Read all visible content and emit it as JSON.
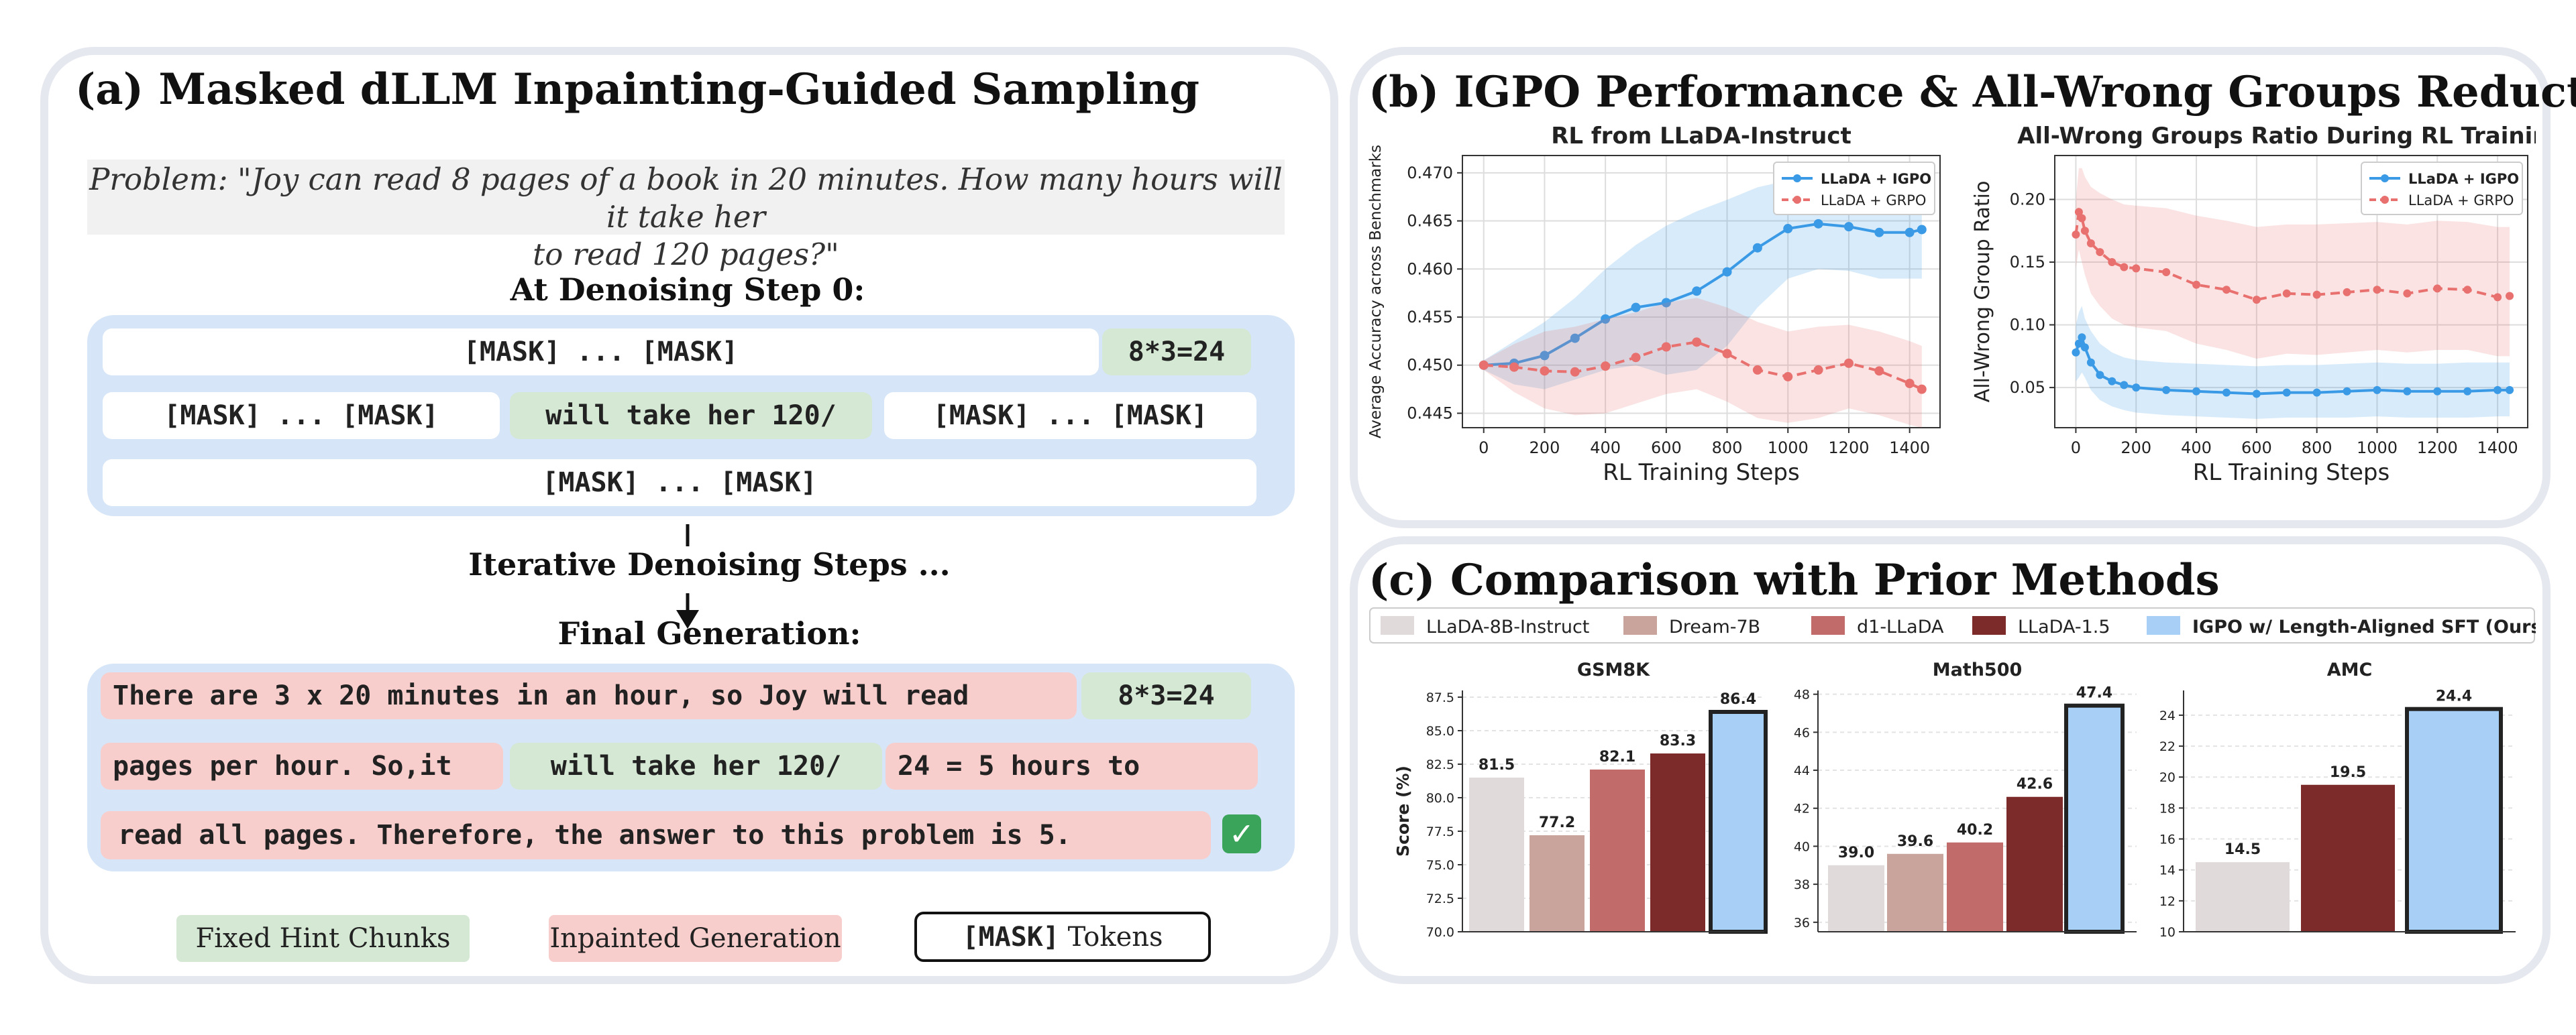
{
  "panel_a": {
    "title": "(a) Masked dLLM Inpainting-Guided Sampling",
    "problem_line1": "Problem: \"Joy can read 8 pages of a book in 20 minutes.  How many hours will it take her",
    "problem_line2": "to read 120 pages?\"",
    "step0_heading": "At Denoising Step 0:",
    "step0_rows": {
      "r1_mask": "[MASK] ... [MASK]",
      "r1_hint": "8*3=24",
      "r2_mask_a": "[MASK] ... [MASK]",
      "r2_hint": "will take her 120/",
      "r2_mask_b": "[MASK] ... [MASK]",
      "r3_mask": "[MASK] ... [MASK]"
    },
    "iterative_heading": "Iterative Denoising Steps ...",
    "final_heading": "Final Generation:",
    "final_rows": {
      "r1_inp": "There are 3 x 20 minutes in an hour, so Joy will read",
      "r1_hint": "8*3=24",
      "r2_inp_a": "pages per hour. So,it",
      "r2_hint": "will take her 120/",
      "r2_inp_b": "24 = 5 hours to",
      "r3_inp": "read all pages. Therefore, the answer to this problem is 5."
    },
    "legend": {
      "fixed": "Fixed Hint Chunks",
      "inpainted": "Inpainted Generation",
      "mask_mono": "[MASK]",
      "mask_text": " Tokens"
    }
  },
  "panel_b": {
    "title": "(b) IGPO Performance & All-Wrong Groups Reduction"
  },
  "panel_c": {
    "title": "(c) Comparison with Prior Methods",
    "legend": [
      "LLaDA-8B-Instruct",
      "Dream-7B",
      "d1-LLaDA",
      "LLaDA-1.5",
      "IGPO w/ Length-Aligned SFT (Ours)"
    ]
  },
  "colors": {
    "igpo_line": "#3a9ae6",
    "grpo_line": "#e8716f",
    "llada_instruct": "#e1dada",
    "dream": "#c9a49d",
    "d1": "#c16b6b",
    "llada15": "#7d2a2a",
    "ours": "#a8d0f7"
  },
  "chart_data": [
    {
      "type": "line",
      "title": "RL from LLaDA-Instruct",
      "xlabel": "RL Training Steps",
      "ylabel": "Average Accuracy across Benchmarks",
      "xlim": [
        -70,
        1500
      ],
      "ylim": [
        0.4435,
        0.4718
      ],
      "xticks": [
        "0",
        "200",
        "400",
        "600",
        "800",
        "1000",
        "1200",
        "1400"
      ],
      "yticks": [
        "0.445",
        "0.450",
        "0.455",
        "0.460",
        "0.465",
        "0.470"
      ],
      "grid": true,
      "legend_position": "top-right",
      "series": [
        {
          "name": "LLaDA + IGPO",
          "x": [
            0,
            100,
            200,
            300,
            400,
            500,
            600,
            700,
            800,
            900,
            1000,
            1100,
            1200,
            1300,
            1400,
            1440
          ],
          "y": [
            0.45,
            0.4502,
            0.451,
            0.4528,
            0.4548,
            0.456,
            0.4565,
            0.4577,
            0.4597,
            0.4622,
            0.4642,
            0.4647,
            0.4644,
            0.4638,
            0.4638,
            0.4641
          ],
          "band_upper": [
            0.4505,
            0.4525,
            0.4545,
            0.457,
            0.46,
            0.4625,
            0.4645,
            0.466,
            0.4672,
            0.4685,
            0.4692,
            0.4695,
            0.469,
            0.4688,
            0.4688,
            0.469
          ],
          "band_lower": [
            0.4495,
            0.448,
            0.4475,
            0.4485,
            0.4495,
            0.45,
            0.449,
            0.4495,
            0.452,
            0.456,
            0.459,
            0.46,
            0.4598,
            0.459,
            0.459,
            0.459
          ]
        },
        {
          "name": "LLaDA + GRPO",
          "x": [
            0,
            100,
            200,
            300,
            400,
            500,
            600,
            700,
            800,
            900,
            1000,
            1100,
            1200,
            1300,
            1400,
            1440
          ],
          "y": [
            0.45,
            0.4498,
            0.4494,
            0.4493,
            0.4499,
            0.4508,
            0.4519,
            0.4524,
            0.4512,
            0.4495,
            0.4488,
            0.4495,
            0.4502,
            0.4494,
            0.4481,
            0.4475
          ],
          "band_upper": [
            0.4505,
            0.4522,
            0.4535,
            0.454,
            0.4548,
            0.4555,
            0.4565,
            0.457,
            0.456,
            0.4545,
            0.4535,
            0.454,
            0.4542,
            0.4535,
            0.4525,
            0.452
          ],
          "band_lower": [
            0.4495,
            0.4472,
            0.4455,
            0.4448,
            0.445,
            0.446,
            0.447,
            0.4475,
            0.4462,
            0.4445,
            0.444,
            0.4445,
            0.4455,
            0.4448,
            0.4438,
            0.4435
          ]
        }
      ]
    },
    {
      "type": "line",
      "title": "All-Wrong Groups Ratio During RL Training",
      "xlabel": "RL Training Steps",
      "ylabel": "All-Wrong Group Ratio",
      "xlim": [
        -70,
        1500
      ],
      "ylim": [
        0.018,
        0.235
      ],
      "xticks": [
        "0",
        "200",
        "400",
        "600",
        "800",
        "1000",
        "1200",
        "1400"
      ],
      "yticks": [
        "0.05",
        "0.10",
        "0.15",
        "0.20"
      ],
      "grid": true,
      "legend_position": "top-right",
      "series": [
        {
          "name": "LLaDA + IGPO",
          "x": [
            0,
            10,
            20,
            30,
            50,
            80,
            120,
            160,
            200,
            300,
            400,
            500,
            600,
            700,
            800,
            900,
            1000,
            1100,
            1200,
            1300,
            1400,
            1440
          ],
          "y": [
            0.078,
            0.085,
            0.09,
            0.082,
            0.07,
            0.06,
            0.055,
            0.052,
            0.05,
            0.048,
            0.047,
            0.046,
            0.045,
            0.046,
            0.046,
            0.047,
            0.048,
            0.047,
            0.047,
            0.047,
            0.048,
            0.048
          ],
          "band_upper": [
            0.1,
            0.11,
            0.115,
            0.105,
            0.095,
            0.085,
            0.078,
            0.074,
            0.072,
            0.07,
            0.069,
            0.068,
            0.067,
            0.068,
            0.068,
            0.069,
            0.07,
            0.069,
            0.069,
            0.07,
            0.07,
            0.07
          ],
          "band_lower": [
            0.055,
            0.058,
            0.062,
            0.058,
            0.048,
            0.04,
            0.035,
            0.032,
            0.03,
            0.028,
            0.027,
            0.026,
            0.025,
            0.026,
            0.026,
            0.026,
            0.027,
            0.026,
            0.026,
            0.026,
            0.027,
            0.027
          ]
        },
        {
          "name": "LLaDA + GRPO",
          "x": [
            0,
            10,
            20,
            30,
            50,
            80,
            120,
            160,
            200,
            300,
            400,
            500,
            600,
            700,
            800,
            900,
            1000,
            1100,
            1200,
            1300,
            1400,
            1440
          ],
          "y": [
            0.172,
            0.19,
            0.185,
            0.175,
            0.165,
            0.158,
            0.15,
            0.146,
            0.145,
            0.142,
            0.132,
            0.128,
            0.12,
            0.125,
            0.124,
            0.126,
            0.128,
            0.125,
            0.129,
            0.128,
            0.122,
            0.123
          ],
          "band_upper": [
            0.2,
            0.225,
            0.225,
            0.218,
            0.21,
            0.205,
            0.2,
            0.196,
            0.195,
            0.193,
            0.187,
            0.183,
            0.178,
            0.18,
            0.18,
            0.181,
            0.182,
            0.18,
            0.183,
            0.182,
            0.178,
            0.178
          ],
          "band_lower": [
            0.145,
            0.16,
            0.15,
            0.14,
            0.125,
            0.115,
            0.105,
            0.1,
            0.098,
            0.095,
            0.085,
            0.08,
            0.073,
            0.077,
            0.076,
            0.078,
            0.08,
            0.078,
            0.08,
            0.08,
            0.075,
            0.075
          ]
        }
      ]
    },
    {
      "type": "bar",
      "title": "GSM8K",
      "ylabel": "Score (%)",
      "ylim": [
        70.0,
        88.0
      ],
      "yticks": [
        "70.0",
        "72.5",
        "75.0",
        "77.5",
        "80.0",
        "82.5",
        "85.0",
        "87.5"
      ],
      "categories": [
        "LLaDA-8B-Instruct",
        "Dream-7B",
        "d1-LLaDA",
        "LLaDA-1.5",
        "IGPO w/ Length-Aligned SFT (Ours)"
      ],
      "values": [
        81.5,
        77.2,
        82.1,
        83.3,
        86.4
      ],
      "labels": [
        "81.5",
        "77.2",
        "82.1",
        "83.3",
        "86.4"
      ]
    },
    {
      "type": "bar",
      "title": "Math500",
      "ylabel": "",
      "ylim": [
        35.5,
        48.2
      ],
      "yticks": [
        "36",
        "38",
        "40",
        "42",
        "44",
        "46",
        "48"
      ],
      "categories": [
        "LLaDA-8B-Instruct",
        "Dream-7B",
        "d1-LLaDA",
        "LLaDA-1.5",
        "IGPO w/ Length-Aligned SFT (Ours)"
      ],
      "values": [
        39.0,
        39.6,
        40.2,
        42.6,
        47.4
      ],
      "labels": [
        "39.0",
        "39.6",
        "40.2",
        "42.6",
        "47.4"
      ]
    },
    {
      "type": "bar",
      "title": "AMC",
      "ylabel": "",
      "ylim": [
        10,
        25.6
      ],
      "yticks": [
        "10",
        "12",
        "14",
        "16",
        "18",
        "20",
        "22",
        "24"
      ],
      "categories": [
        "LLaDA-8B-Instruct",
        "LLaDA-1.5",
        "IGPO w/ Length-Aligned SFT (Ours)"
      ],
      "values": [
        14.5,
        19.5,
        24.4
      ],
      "labels": [
        "14.5",
        "19.5",
        "24.4"
      ]
    }
  ]
}
